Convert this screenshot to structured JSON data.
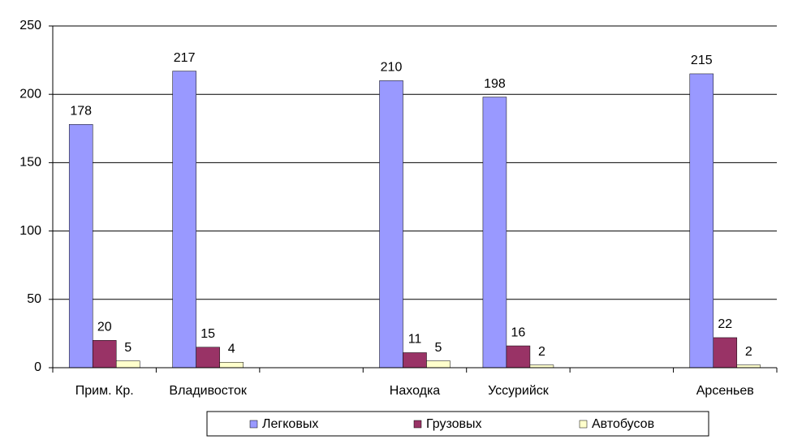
{
  "chart_data": {
    "type": "bar",
    "categories": [
      "Прим. Кр.",
      "Владивосток",
      null,
      "Находка",
      "Уссурийск",
      null,
      "Арсеньев"
    ],
    "series": [
      {
        "name": "Легковых",
        "color": "#9999ff",
        "values": [
          178,
          217,
          null,
          210,
          198,
          null,
          215
        ]
      },
      {
        "name": "Грузовых",
        "color": "#993366",
        "values": [
          20,
          15,
          null,
          11,
          16,
          null,
          22
        ]
      },
      {
        "name": "Автобусов",
        "color": "#ffffcc",
        "values": [
          5,
          4,
          null,
          5,
          2,
          null,
          2
        ]
      }
    ],
    "ylim": [
      0,
      250
    ],
    "yticks": [
      0,
      50,
      100,
      150,
      200,
      250
    ],
    "grid": true,
    "legend": "bottom"
  }
}
